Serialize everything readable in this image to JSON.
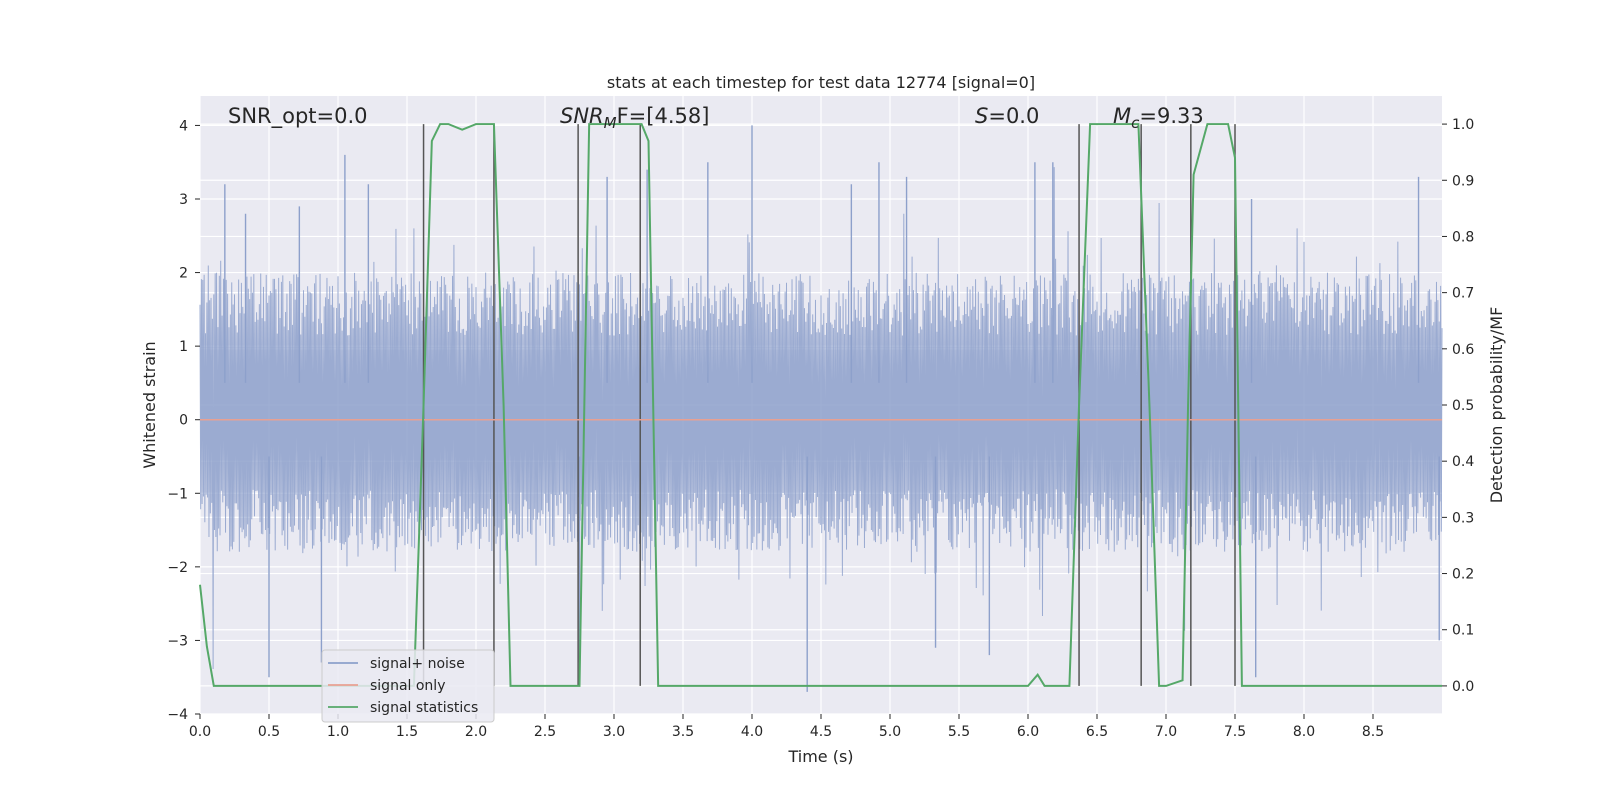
{
  "chart_data": {
    "type": "line",
    "title": "stats at each timestep for test data 12774 [signal=0]",
    "xlabel": "Time (s)",
    "ylabel": "Whitened strain",
    "y2label": "Detection probability/MF",
    "xlim": [
      0,
      9
    ],
    "ylim": [
      -4,
      4.4
    ],
    "y2lim": [
      -0.05,
      1.05
    ],
    "grid": true,
    "x_ticks": [
      "0.0",
      "0.5",
      "1.0",
      "1.5",
      "2.0",
      "2.5",
      "3.0",
      "3.5",
      "4.0",
      "4.5",
      "5.0",
      "5.5",
      "6.0",
      "6.5",
      "7.0",
      "7.5",
      "8.0",
      "8.5"
    ],
    "y_ticks": [
      "4",
      "3",
      "2",
      "1",
      "0",
      "−1",
      "−2",
      "−3",
      "−4"
    ],
    "y2_ticks": [
      "1.0",
      "0.9",
      "0.8",
      "0.7",
      "0.6",
      "0.5",
      "0.4",
      "0.3",
      "0.2",
      "0.1",
      "0.0"
    ],
    "annotations": {
      "snr_opt": "SNR_opt=0.0",
      "snr_mf_main": "SNR",
      "snr_mf_sub": "M",
      "snr_mf_rest": "F=[4.58]",
      "s_main": "S",
      "s_rest": "=0.0",
      "mc_main": "M",
      "mc_sub": "c",
      "mc_rest": "=9.33"
    },
    "legend": {
      "placement": "lower-left",
      "entries": [
        "signal+ noise",
        "signal only",
        "signal statistics"
      ]
    },
    "series": [
      {
        "name": "signal+ noise",
        "color": "#8da0cb",
        "style": "noise",
        "typical_range": [
          -1.8,
          2.0
        ],
        "spikes": [
          {
            "x": 0.18,
            "y": 3.2
          },
          {
            "x": 0.33,
            "y": 2.8
          },
          {
            "x": 0.72,
            "y": 2.9
          },
          {
            "x": 1.05,
            "y": 3.6
          },
          {
            "x": 1.22,
            "y": 3.2
          },
          {
            "x": 2.95,
            "y": 3.3
          },
          {
            "x": 3.24,
            "y": 3.4
          },
          {
            "x": 3.68,
            "y": 3.5
          },
          {
            "x": 4.0,
            "y": 4.0
          },
          {
            "x": 4.72,
            "y": 3.2
          },
          {
            "x": 4.92,
            "y": 3.5
          },
          {
            "x": 5.12,
            "y": 3.3
          },
          {
            "x": 6.05,
            "y": 3.5
          },
          {
            "x": 6.18,
            "y": 3.5
          },
          {
            "x": 7.62,
            "y": 3.0
          },
          {
            "x": 8.83,
            "y": 3.3
          },
          {
            "x": 0.5,
            "y": -3.5
          },
          {
            "x": 0.88,
            "y": -3.3
          },
          {
            "x": 2.75,
            "y": -3.3
          },
          {
            "x": 4.4,
            "y": -3.7
          },
          {
            "x": 5.33,
            "y": -3.1
          },
          {
            "x": 5.72,
            "y": -3.2
          },
          {
            "x": 7.65,
            "y": -3.5
          },
          {
            "x": 8.98,
            "y": -3.0
          }
        ]
      },
      {
        "name": "signal only",
        "color": "#e8a092",
        "x": [
          0,
          9
        ],
        "y": [
          0,
          0
        ]
      },
      {
        "name": "signal statistics",
        "color": "#55a868",
        "axis": "right",
        "x": [
          0,
          0.05,
          0.1,
          0.15,
          0.4,
          1.55,
          1.62,
          1.68,
          1.74,
          1.8,
          1.9,
          2.0,
          2.13,
          2.2,
          2.25,
          2.5,
          2.72,
          2.75,
          2.82,
          2.9,
          3.0,
          3.2,
          3.25,
          3.32,
          3.5,
          4.0,
          5.0,
          6.0,
          6.07,
          6.12,
          6.2,
          6.3,
          6.37,
          6.45,
          6.6,
          6.8,
          6.88,
          6.95,
          7.0,
          7.12,
          7.16,
          7.2,
          7.3,
          7.35,
          7.45,
          7.5,
          7.55,
          7.6,
          8.0,
          9.0
        ],
        "y": [
          0.18,
          0.07,
          0.0,
          0.0,
          0.0,
          0.0,
          0.5,
          0.97,
          1.0,
          1.0,
          0.99,
          1.0,
          1.0,
          0.5,
          0.0,
          0.0,
          0.0,
          0.0,
          1.0,
          1.0,
          1.0,
          1.0,
          0.97,
          0.0,
          0.0,
          0.0,
          0.0,
          0.0,
          0.02,
          0.0,
          0.0,
          0.0,
          0.5,
          1.0,
          1.0,
          1.0,
          0.5,
          0.0,
          0.0,
          0.01,
          0.5,
          0.91,
          1.0,
          1.0,
          1.0,
          0.94,
          0.0,
          0.0,
          0.0,
          0.0
        ]
      }
    ],
    "vlines": [
      1.62,
      2.13,
      2.74,
      3.19,
      6.37,
      6.82,
      7.18,
      7.5
    ]
  }
}
